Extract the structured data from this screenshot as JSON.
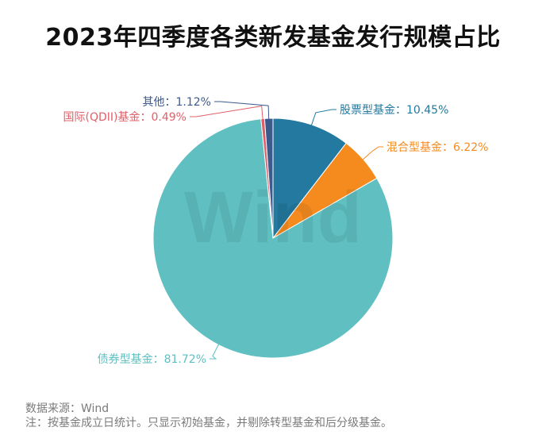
{
  "chart_data": {
    "type": "pie",
    "title": "2023年四季度各类新发基金发行规模占比",
    "slices": [
      {
        "name": "股票型基金",
        "value": 10.45,
        "label": "股票型基金：10.45%",
        "color": "#23799f"
      },
      {
        "name": "混合型基金",
        "value": 6.22,
        "label": "混合型基金：6.22%",
        "color": "#f58b1f"
      },
      {
        "name": "债券型基金",
        "value": 81.72,
        "label": "债券型基金：81.72%",
        "color": "#5fbfc1"
      },
      {
        "name": "国际(QDII)基金",
        "value": 0.49,
        "label": "国际(QDII)基金：0.49%",
        "color": "#e0606a"
      },
      {
        "name": "其他",
        "value": 1.12,
        "label": "其他：1.12%",
        "color": "#3d5a8c"
      }
    ]
  },
  "watermark": "Wind",
  "footer": {
    "source": "数据来源：Wind",
    "note": "注：按基金成立日统计。只显示初始基金，并剔除转型基金和后分级基金。"
  }
}
